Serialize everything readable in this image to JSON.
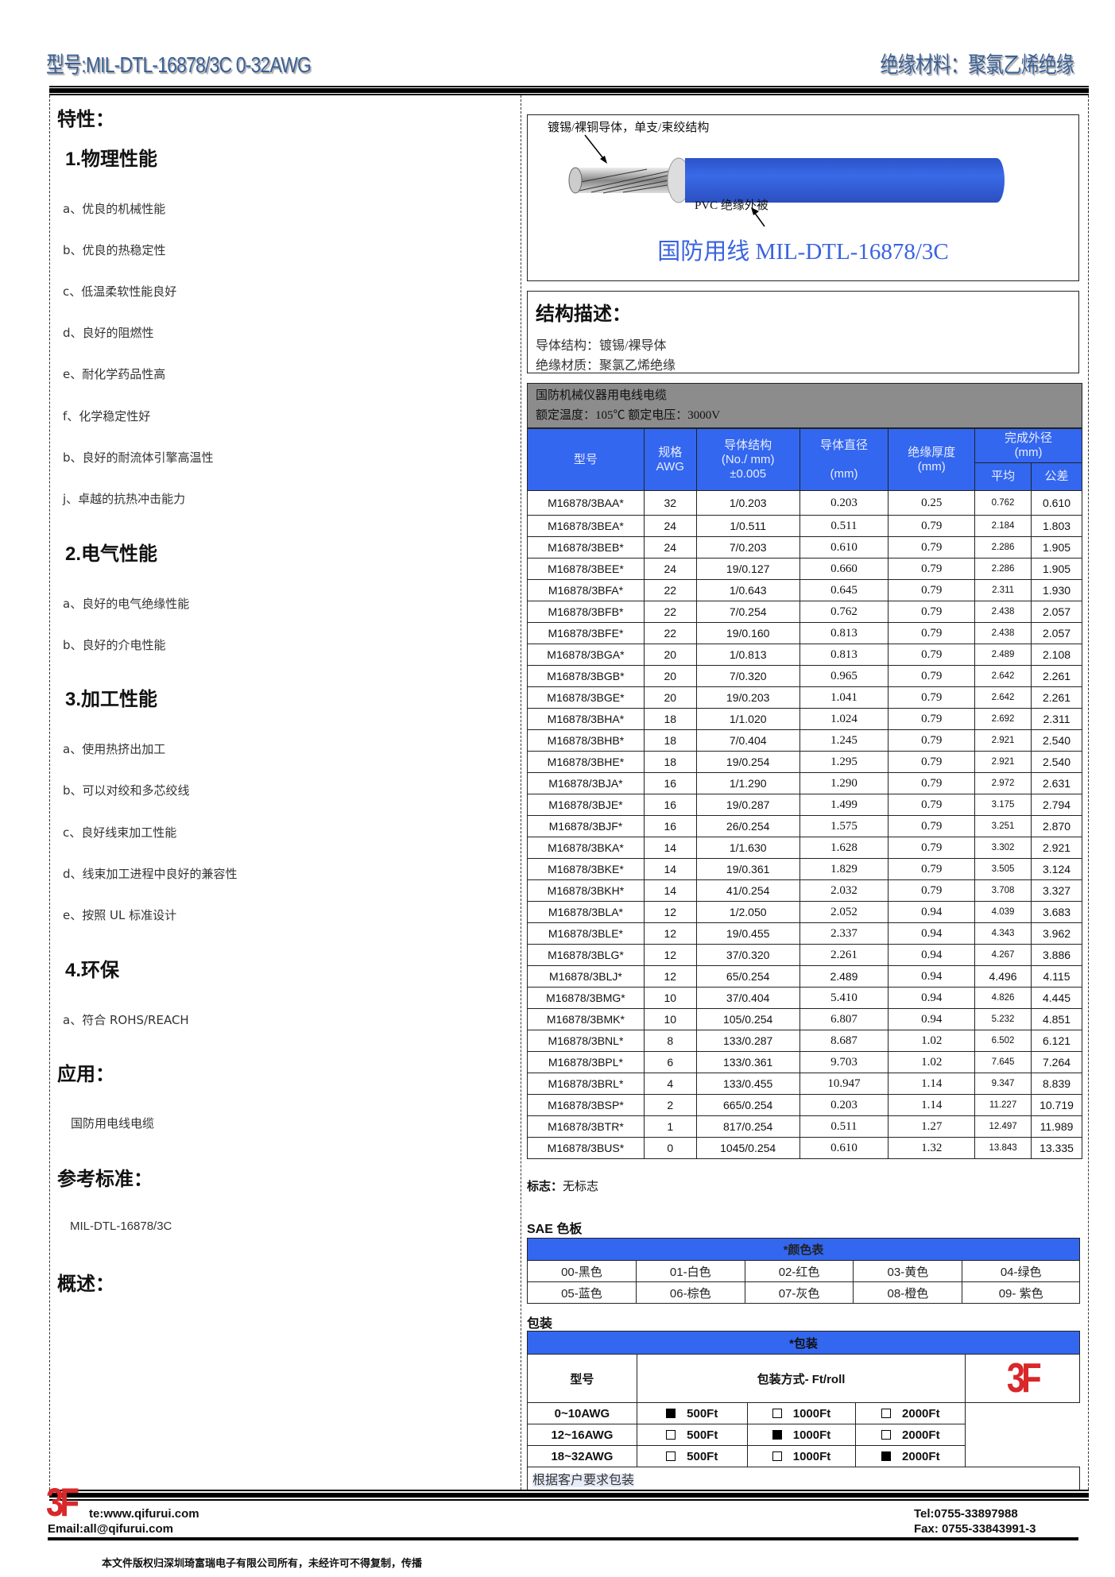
{
  "header": {
    "model": "型号:MIL-DTL-16878/3C 0-32AWG",
    "material": "绝缘材料：聚氯乙烯绝缘"
  },
  "left": {
    "features_title": "特性：",
    "sections": [
      {
        "title": "1.物理性能",
        "items": [
          "a、优良的机械性能",
          "b、优良的热稳定性",
          "c、低温柔软性能良好",
          "d、良好的阻燃性",
          "e、耐化学药品性高",
          "f、化学稳定性好",
          "b、良好的耐流体引擎高温性",
          "j、卓越的抗热冲击能力"
        ]
      },
      {
        "title": "2.电气性能",
        "items": [
          "a、良好的电气绝缘性能",
          "b、良好的介电性能"
        ]
      },
      {
        "title": "3.加工性能",
        "items": [
          "a、使用热挤出加工",
          "b、可以对绞和多芯绞线",
          "c、良好线束加工性能",
          "d、线束加工进程中良好的兼容性",
          "e、按照 UL 标准设计"
        ]
      },
      {
        "title": "4.环保",
        "items": [
          "a、符合 ROHS/REACH"
        ]
      }
    ],
    "application_title": "应用：",
    "application": "国防用电线电缆",
    "standard_title": "参考标准：",
    "standard": "MIL-DTL-16878/3C",
    "overview_title": "概述："
  },
  "diagram": {
    "conductor_label": "镀锡/裸铜导体，单支/束绞结构",
    "insulation_label": "PVC  绝缘外被",
    "caption": "国防用线  MIL-DTL-16878/3C",
    "jacket_color": "#3563e0"
  },
  "structure": {
    "title": "结构描述：",
    "conductor": "导体结构：镀锡/裸导体",
    "insulation": "绝缘材质：聚氯乙烯绝缘"
  },
  "spec": {
    "title": "国防机械仪器用电线电缆",
    "rating": "额定温度：105℃  额定电压：3000V",
    "headers": {
      "model": "型号",
      "awg_1": "规格",
      "awg_2": "AWG",
      "cond_1": "导体结构",
      "cond_2": "(No./ mm)",
      "cond_3": "±0.005",
      "dia_1": "导体直径",
      "dia_2": "(mm)",
      "ins_1": "绝缘厚度",
      "ins_2": "(mm)",
      "od_1": "完成外径",
      "od_2": "(mm)",
      "avg": "平均",
      "tol": "公差"
    },
    "rows": [
      [
        "M16878/3BAA*",
        "32",
        "1/0.203",
        "0.203",
        "0.25",
        "0.762",
        "0.610"
      ],
      [
        "M16878/3BEA*",
        "24",
        "1/0.511",
        "0.511",
        "0.79",
        "2.184",
        "1.803"
      ],
      [
        "M16878/3BEB*",
        "24",
        "7/0.203",
        "0.610",
        "0.79",
        "2.286",
        "1.905"
      ],
      [
        "M16878/3BEE*",
        "24",
        "19/0.127",
        "0.660",
        "0.79",
        "2.286",
        "1.905"
      ],
      [
        "M16878/3BFA*",
        "22",
        "1/0.643",
        "0.645",
        "0.79",
        "2.311",
        "1.930"
      ],
      [
        "M16878/3BFB*",
        "22",
        "7/0.254",
        "0.762",
        "0.79",
        "2.438",
        "2.057"
      ],
      [
        "M16878/3BFE*",
        "22",
        "19/0.160",
        "0.813",
        "0.79",
        "2.438",
        "2.057"
      ],
      [
        "M16878/3BGA*",
        "20",
        "1/0.813",
        "0.813",
        "0.79",
        "2.489",
        "2.108"
      ],
      [
        "M16878/3BGB*",
        "20",
        "7/0.320",
        "0.965",
        "0.79",
        "2.642",
        "2.261"
      ],
      [
        "M16878/3BGE*",
        "20",
        "19/0.203",
        "1.041",
        "0.79",
        "2.642",
        "2.261"
      ],
      [
        "M16878/3BHA*",
        "18",
        "1/1.020",
        "1.024",
        "0.79",
        "2.692",
        "2.311"
      ],
      [
        "M16878/3BHB*",
        "18",
        "7/0.404",
        "1.245",
        "0.79",
        "2.921",
        "2.540"
      ],
      [
        "M16878/3BHE*",
        "18",
        "19/0.254",
        "1.295",
        "0.79",
        "2.921",
        "2.540"
      ],
      [
        "M16878/3BJA*",
        "16",
        "1/1.290",
        "1.290",
        "0.79",
        "2.972",
        "2.631"
      ],
      [
        "M16878/3BJE*",
        "16",
        "19/0.287",
        "1.499",
        "0.79",
        "3.175",
        "2.794"
      ],
      [
        "M16878/3BJF*",
        "16",
        "26/0.254",
        "1.575",
        "0.79",
        "3.251",
        "2.870"
      ],
      [
        "M16878/3BKA*",
        "14",
        "1/1.630",
        "1.628",
        "0.79",
        "3.302",
        "2.921"
      ],
      [
        "M16878/3BKE*",
        "14",
        "19/0.361",
        "1.829",
        "0.79",
        "3.505",
        "3.124"
      ],
      [
        "M16878/3BKH*",
        "14",
        "41/0.254",
        "2.032",
        "0.79",
        "3.708",
        "3.327"
      ],
      [
        "M16878/3BLA*",
        "12",
        "1/2.050",
        "2.052",
        "0.94",
        "4.039",
        "3.683"
      ],
      [
        "M16878/3BLE*",
        "12",
        "19/0.455",
        "2.337",
        "0.94",
        "4.343",
        "3.962"
      ],
      [
        "M16878/3BLG*",
        "12",
        "37/0.320",
        "2.261",
        "0.94",
        "4.267",
        "3.886"
      ],
      [
        "M16878/3BLJ*",
        "12",
        "65/0.254",
        "2.489",
        "0.94",
        "4.496",
        "4.115"
      ],
      [
        "M16878/3BMG*",
        "10",
        "37/0.404",
        "5.410",
        "0.94",
        "4.826",
        "4.445"
      ],
      [
        "M16878/3BMK*",
        "10",
        "105/0.254",
        "6.807",
        "0.94",
        "5.232",
        "4.851"
      ],
      [
        "M16878/3BNL*",
        "8",
        "133/0.287",
        "8.687",
        "1.02",
        "6.502",
        "6.121"
      ],
      [
        "M16878/3BPL*",
        "6",
        "133/0.361",
        "9.703",
        "1.02",
        "7.645",
        "7.264"
      ],
      [
        "M16878/3BRL*",
        "4",
        "133/0.455",
        "10.947",
        "1.14",
        "9.347",
        "8.839"
      ],
      [
        "M16878/3BSP*",
        "2",
        "665/0.254",
        "0.203",
        "1.14",
        "11.227",
        "10.719"
      ],
      [
        "M16878/3BTR*",
        "1",
        "817/0.254",
        "0.511",
        "1.27",
        "12.497",
        "11.989"
      ],
      [
        "M16878/3BUS*",
        "0",
        "1045/0.254",
        "0.610",
        "1.32",
        "13.843",
        "13.335"
      ]
    ]
  },
  "marking": {
    "label": "标志：",
    "value": "无标志"
  },
  "sae": {
    "title": "SAE 色板",
    "table_title": "*颜色表",
    "colors": [
      [
        "00-黑色",
        "01-白色",
        "02-红色",
        "03-黄色",
        "04-绿色"
      ],
      [
        "05-蓝色",
        "06-棕色",
        "07-灰色",
        "08-橙色",
        "09-  紫色"
      ]
    ]
  },
  "packaging": {
    "title": "包装",
    "table_title": "*包装",
    "col_model": "型号",
    "col_method": "包装方式- Ft/roll",
    "logo": "3F",
    "rows": [
      {
        "model": "0~10AWG",
        "opts": [
          {
            "label": "500Ft",
            "checked": true
          },
          {
            "label": "1000Ft",
            "checked": false
          },
          {
            "label": "2000Ft",
            "checked": false
          }
        ]
      },
      {
        "model": "12~16AWG",
        "opts": [
          {
            "label": "500Ft",
            "checked": false
          },
          {
            "label": "1000Ft",
            "checked": true
          },
          {
            "label": "2000Ft",
            "checked": false
          }
        ]
      },
      {
        "model": "18~32AWG",
        "opts": [
          {
            "label": "500Ft",
            "checked": false
          },
          {
            "label": "1000Ft",
            "checked": false
          },
          {
            "label": "2000Ft",
            "checked": true
          }
        ]
      }
    ],
    "note": "根据客户要求包装"
  },
  "footer": {
    "logo": "3F",
    "website": "te:www.qifurui.com",
    "email": "Email:all@qifurui.com",
    "tel": "Tel:0755-33897988",
    "fax": "Fax: 0755-33843991-3",
    "copyright": "本文件版权归深圳琦富瑞电子有限公司所有，未经许可不得复制，传播"
  },
  "colors": {
    "accent_blue": "#3367ef",
    "header_text": "#3a5f95",
    "logo_red": "#d8282a",
    "gray_band": "#8c8c8c"
  }
}
